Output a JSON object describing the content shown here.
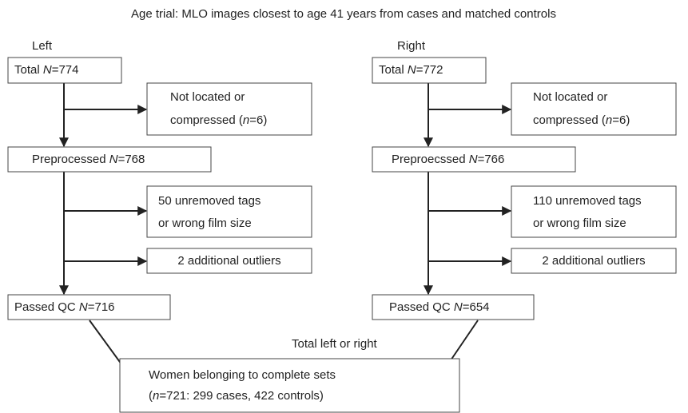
{
  "title": "Age trial: MLO images closest to age 41 years from cases and matched controls",
  "labels": [
    "Left",
    "Right",
    "Total left or right"
  ],
  "nodes": [
    {
      "lines": [
        [
          "Total ",
          "N",
          "=774"
        ]
      ]
    },
    {
      "lines": [
        [
          "Not located or"
        ],
        [
          "compressed (",
          "n",
          "=6)"
        ]
      ]
    },
    {
      "lines": [
        [
          "Preprocessed ",
          "N",
          "=768"
        ]
      ]
    },
    {
      "lines": [
        [
          "50 unremoved tags"
        ],
        [
          "or wrong film size"
        ]
      ]
    },
    {
      "lines": [
        [
          "2 additional outliers"
        ]
      ]
    },
    {
      "lines": [
        [
          "Passed QC ",
          "N",
          "=716"
        ]
      ]
    },
    {
      "lines": [
        [
          "Total ",
          "N",
          "=772"
        ]
      ]
    },
    {
      "lines": [
        [
          "Not located or"
        ],
        [
          "compressed (",
          "n",
          "=6)"
        ]
      ]
    },
    {
      "lines": [
        [
          "Preproecssed ",
          "N",
          "=766"
        ]
      ]
    },
    {
      "lines": [
        [
          "110 unremoved tags"
        ],
        [
          "or wrong film size"
        ]
      ]
    },
    {
      "lines": [
        [
          "2 additional outliers"
        ]
      ]
    },
    {
      "lines": [
        [
          "Passed QC ",
          "N",
          "=654"
        ]
      ]
    },
    {
      "lines": [
        [
          "Women belonging to complete sets"
        ],
        [
          "(",
          "n",
          "=721: 299 cases, 422 controls)"
        ]
      ]
    }
  ]
}
